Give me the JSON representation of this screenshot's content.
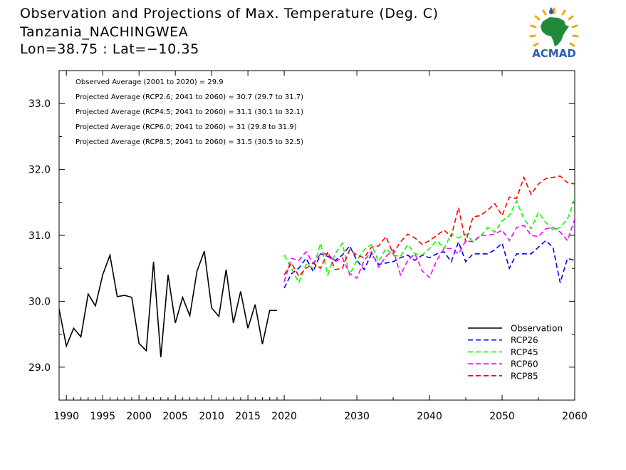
{
  "header": {
    "title_line1": "Observation and Projections of Max. Temperature (Deg. C)",
    "title_line2": "Tanzania_NACHINGWEA",
    "title_line3": "Lon=38.75 : Lat=−10.35"
  },
  "logo": {
    "text": "ACMAD"
  },
  "chart_data": {
    "type": "line",
    "xlim": [
      1989,
      2060
    ],
    "ylim": [
      28.5,
      33.5
    ],
    "x_ticks": [
      {
        "value": 1990,
        "label": "1990"
      },
      {
        "value": 1995,
        "label": "1995"
      },
      {
        "value": 2000,
        "label": "2000"
      },
      {
        "value": 2005,
        "label": "2005"
      },
      {
        "value": 2010,
        "label": "2010"
      },
      {
        "value": 2015,
        "label": "2015"
      },
      {
        "value": 2020,
        "label": "2020"
      },
      {
        "value": 2030,
        "label": "2030"
      },
      {
        "value": 2040,
        "label": "2040"
      },
      {
        "value": 2050,
        "label": "2050"
      },
      {
        "value": 2060,
        "label": "2060"
      }
    ],
    "y_ticks": [
      {
        "value": 29.0,
        "label": "29.0"
      },
      {
        "value": 30.0,
        "label": "30.0"
      },
      {
        "value": 31.0,
        "label": "31.0"
      },
      {
        "value": 32.0,
        "label": "32.0"
      },
      {
        "value": 33.0,
        "label": "33.0"
      }
    ],
    "annotations": [
      "Observed Average (2001 to 2020) = 29.9",
      "Projected Average (RCP2.6; 2041 to 2060) = 30.7 (29.7 to 31.7)",
      "Projected Average (RCP4.5; 2041 to 2060) = 31.1 (30.1 to 32.1)",
      "Projected Average (RCP6.0; 2041 to 2060) = 31 (29.8 to 31.9)",
      "Projected Average (RCP8.5; 2041 to 2060) = 31.5 (30.5 to 32.5)"
    ],
    "legend_position": "bottom-right",
    "series": [
      {
        "name": "Observation",
        "color": "#000000",
        "style": "solid",
        "x": [
          1989,
          1990,
          1991,
          1992,
          1993,
          1994,
          1995,
          1996,
          1997,
          1998,
          1999,
          2000,
          2001,
          2002,
          2003,
          2004,
          2005,
          2006,
          2007,
          2008,
          2009,
          2010,
          2011,
          2012,
          2013,
          2014,
          2015,
          2016,
          2017,
          2018,
          2019
        ],
        "y": [
          29.88,
          29.32,
          29.59,
          29.46,
          30.11,
          29.93,
          30.4,
          30.7,
          30.07,
          30.09,
          30.06,
          29.36,
          29.25,
          30.6,
          29.15,
          30.4,
          29.67,
          30.06,
          29.78,
          30.46,
          30.76,
          29.9,
          29.77,
          30.48,
          29.67,
          30.15,
          29.59,
          29.95,
          29.35,
          29.86,
          29.86
        ]
      },
      {
        "name": "RCP26",
        "color": "#0000ff",
        "style": "dashed",
        "x": [
          2020,
          2021,
          2022,
          2023,
          2024,
          2025,
          2026,
          2027,
          2028,
          2029,
          2030,
          2031,
          2032,
          2033,
          2034,
          2035,
          2036,
          2037,
          2038,
          2039,
          2040,
          2041,
          2042,
          2043,
          2044,
          2045,
          2046,
          2047,
          2048,
          2049,
          2050,
          2051,
          2052,
          2053,
          2054,
          2055,
          2056,
          2057,
          2058,
          2059,
          2060
        ],
        "y": [
          30.2,
          30.42,
          30.5,
          30.65,
          30.45,
          30.72,
          30.68,
          30.62,
          30.7,
          30.84,
          30.62,
          30.48,
          30.72,
          30.56,
          30.58,
          30.6,
          30.66,
          30.7,
          30.62,
          30.7,
          30.66,
          30.72,
          30.75,
          30.6,
          30.9,
          30.6,
          30.72,
          30.72,
          30.72,
          30.78,
          30.88,
          30.5,
          30.72,
          30.72,
          30.72,
          30.82,
          30.92,
          30.82,
          30.28,
          30.65,
          30.62
        ]
      },
      {
        "name": "RCP45",
        "color": "#00ff00",
        "style": "dashed",
        "x": [
          2020,
          2021,
          2022,
          2023,
          2024,
          2025,
          2026,
          2027,
          2028,
          2029,
          2030,
          2031,
          2032,
          2033,
          2034,
          2035,
          2036,
          2037,
          2038,
          2039,
          2040,
          2041,
          2042,
          2043,
          2044,
          2045,
          2046,
          2047,
          2048,
          2049,
          2050,
          2051,
          2052,
          2053,
          2054,
          2055,
          2056,
          2057,
          2058,
          2059,
          2060
        ],
        "y": [
          30.7,
          30.5,
          30.28,
          30.56,
          30.5,
          30.88,
          30.4,
          30.72,
          30.88,
          30.4,
          30.62,
          30.78,
          30.86,
          30.6,
          30.8,
          30.7,
          30.68,
          30.86,
          30.72,
          30.7,
          30.8,
          30.92,
          30.8,
          31.02,
          30.96,
          31.02,
          30.9,
          30.98,
          31.12,
          31.05,
          31.22,
          31.3,
          31.52,
          31.25,
          31.1,
          31.35,
          31.2,
          31.08,
          31.12,
          31.25,
          31.55
        ]
      },
      {
        "name": "RCP60",
        "color": "#ff00ff",
        "style": "dashed",
        "x": [
          2020,
          2021,
          2022,
          2023,
          2024,
          2025,
          2026,
          2027,
          2028,
          2029,
          2030,
          2031,
          2032,
          2033,
          2034,
          2035,
          2036,
          2037,
          2038,
          2039,
          2040,
          2041,
          2042,
          2043,
          2044,
          2045,
          2046,
          2047,
          2048,
          2049,
          2050,
          2051,
          2052,
          2053,
          2054,
          2055,
          2056,
          2057,
          2058,
          2059,
          2060
        ],
        "y": [
          30.3,
          30.65,
          30.62,
          30.75,
          30.58,
          30.72,
          30.72,
          30.6,
          30.66,
          30.42,
          30.35,
          30.62,
          30.75,
          30.52,
          30.68,
          30.78,
          30.4,
          30.62,
          30.72,
          30.46,
          30.36,
          30.62,
          30.8,
          30.8,
          30.72,
          30.92,
          30.9,
          31.0,
          31.0,
          31.02,
          31.08,
          30.92,
          31.12,
          31.15,
          31.0,
          30.98,
          31.1,
          31.12,
          31.05,
          30.92,
          31.25
        ]
      },
      {
        "name": "RCP85",
        "color": "#ff0000",
        "style": "dashed",
        "x": [
          2020,
          2021,
          2022,
          2023,
          2024,
          2025,
          2026,
          2027,
          2028,
          2029,
          2030,
          2031,
          2032,
          2033,
          2034,
          2035,
          2036,
          2037,
          2038,
          2039,
          2040,
          2041,
          2042,
          2043,
          2044,
          2045,
          2046,
          2047,
          2048,
          2049,
          2050,
          2051,
          2052,
          2053,
          2054,
          2055,
          2056,
          2057,
          2058,
          2059,
          2060
        ],
        "y": [
          30.4,
          30.58,
          30.38,
          30.5,
          30.58,
          30.5,
          30.75,
          30.48,
          30.5,
          30.78,
          30.7,
          30.66,
          30.82,
          30.84,
          30.98,
          30.72,
          30.9,
          31.02,
          30.96,
          30.86,
          30.92,
          31.0,
          31.08,
          30.98,
          31.42,
          30.9,
          31.28,
          31.3,
          31.38,
          31.48,
          31.3,
          31.58,
          31.56,
          31.88,
          31.62,
          31.78,
          31.86,
          31.88,
          31.9,
          31.8,
          31.78
        ]
      }
    ]
  }
}
